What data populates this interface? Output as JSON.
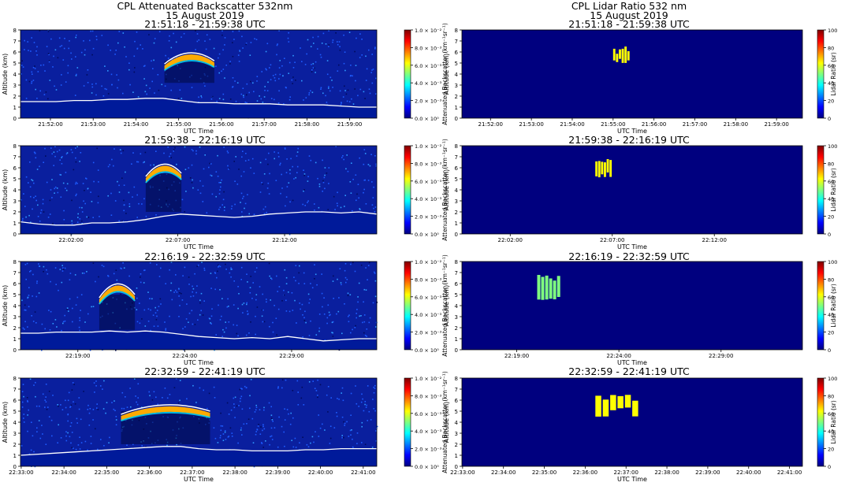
{
  "left_header": {
    "title": "CPL Attenuated Backscatter 532nm",
    "date": "15 August 2019"
  },
  "right_header": {
    "title": "CPL Lidar Ratio 532 nm",
    "date": "15 August 2019"
  },
  "colors": {
    "jet": [
      "#00007f",
      "#0000ff",
      "#007fff",
      "#00ffff",
      "#7fff7f",
      "#ffff00",
      "#ff7f00",
      "#ff0000",
      "#7f0000"
    ],
    "surface_line": "#ffffff",
    "lr_background": "#00007f",
    "lr_patch": "#7fff7f"
  },
  "shared_axes": {
    "ylabel": "Altitude (km)",
    "xlabel": "UTC Time",
    "ylim": [
      0,
      8
    ],
    "yticks": [
      "0",
      "1",
      "2",
      "3",
      "4",
      "5",
      "6",
      "7",
      "8"
    ]
  },
  "colorbars": {
    "backscatter": {
      "label": "Attenuated Backscatter (km⁻¹sr⁻¹)",
      "range": [
        0.0,
        0.01
      ],
      "ticks": [
        "0.0 × 10⁰",
        "2.0 × 10⁻³",
        "4.0 × 10⁻³",
        "6.0 × 10⁻³",
        "8.0 × 10⁻³",
        "1.0 × 10⁻²"
      ]
    },
    "lidar_ratio": {
      "label": "Lidar Ratio (sr)",
      "range": [
        0,
        100
      ],
      "ticks": [
        "0",
        "20",
        "40",
        "60",
        "80",
        "100"
      ]
    }
  },
  "chart_data": [
    {
      "type": "heatmap",
      "title": "21:51:18 - 21:59:38 UTC",
      "x_range": [
        "21:51:18",
        "21:59:38"
      ],
      "xticks": [
        "21:52:00",
        "21:53:00",
        "21:54:00",
        "21:55:00",
        "21:56:00",
        "21:57:00",
        "21:58:00",
        "21:59:00"
      ],
      "surface_altitude_km": [
        1.5,
        1.5,
        1.5,
        1.6,
        1.6,
        1.7,
        1.7,
        1.8,
        1.8,
        1.6,
        1.4,
        1.4,
        1.3,
        1.3,
        1.3,
        1.2,
        1.2,
        1.2,
        1.1,
        1.0,
        1.0
      ],
      "cloud": {
        "time_start": "21:54:40",
        "time_end": "21:55:50",
        "top_km": [
          5.2,
          6.5
        ],
        "base_km": 3.2
      },
      "lidar_ratio_sr": 65,
      "lidar_ratio_patch": {
        "time_start": "21:55:00",
        "time_end": "21:55:25",
        "alt_km": [
          5.0,
          6.5
        ]
      }
    },
    {
      "type": "heatmap",
      "title": "21:59:38 - 22:16:19 UTC",
      "x_range": [
        "21:59:38",
        "22:16:19"
      ],
      "xticks": [
        "22:02:00",
        "22:07:00",
        "22:12:00"
      ],
      "surface_altitude_km": [
        1.1,
        0.9,
        0.8,
        0.8,
        1.0,
        1.0,
        1.1,
        1.3,
        1.6,
        1.8,
        1.7,
        1.6,
        1.5,
        1.6,
        1.8,
        1.9,
        2.0,
        2.0,
        1.9,
        2.0,
        1.8
      ],
      "cloud": {
        "time_start": "22:05:30",
        "time_end": "22:07:10",
        "top_km": [
          5.5,
          7.0
        ],
        "base_km": 2.0
      },
      "lidar_ratio_sr": 65,
      "lidar_ratio_patch": {
        "time_start": "22:06:10",
        "time_end": "22:07:00",
        "alt_km": [
          5.0,
          6.8
        ]
      }
    },
    {
      "type": "heatmap",
      "title": "22:16:19 - 22:32:59 UTC",
      "x_range": [
        "22:16:19",
        "22:32:59"
      ],
      "xticks": [
        "22:19:00",
        "22:24:00",
        "22:29:00"
      ],
      "surface_altitude_km": [
        1.5,
        1.5,
        1.6,
        1.6,
        1.6,
        1.7,
        1.6,
        1.7,
        1.6,
        1.4,
        1.2,
        1.1,
        1.0,
        1.1,
        1.0,
        1.2,
        1.0,
        0.8,
        0.9,
        1.0,
        1.0
      ],
      "cloud": {
        "time_start": "22:20:00",
        "time_end": "22:21:40",
        "top_km": [
          5.0,
          6.8
        ],
        "base_km": 1.8
      },
      "lidar_ratio_sr": 50,
      "lidar_ratio_patch": {
        "time_start": "22:20:00",
        "time_end": "22:21:10",
        "alt_km": [
          4.5,
          6.8
        ]
      }
    },
    {
      "type": "heatmap",
      "title": "22:32:59 - 22:41:19 UTC",
      "x_range": [
        "22:32:59",
        "22:41:19"
      ],
      "xticks": [
        "22:33:00",
        "22:34:00",
        "22:35:00",
        "22:36:00",
        "22:37:00",
        "22:38:00",
        "22:39:00",
        "22:40:00",
        "22:41:00"
      ],
      "surface_altitude_km": [
        1.0,
        1.1,
        1.2,
        1.3,
        1.4,
        1.5,
        1.6,
        1.7,
        1.8,
        1.8,
        1.6,
        1.5,
        1.5,
        1.4,
        1.4,
        1.4,
        1.5,
        1.5,
        1.6,
        1.6,
        1.6
      ],
      "cloud": {
        "time_start": "22:35:20",
        "time_end": "22:37:25",
        "top_km": [
          5.0,
          6.0
        ],
        "base_km": 2.0
      },
      "lidar_ratio_sr": 65,
      "lidar_ratio_patch": {
        "time_start": "22:36:15",
        "time_end": "22:37:20",
        "alt_km": [
          4.5,
          6.5
        ]
      }
    }
  ]
}
